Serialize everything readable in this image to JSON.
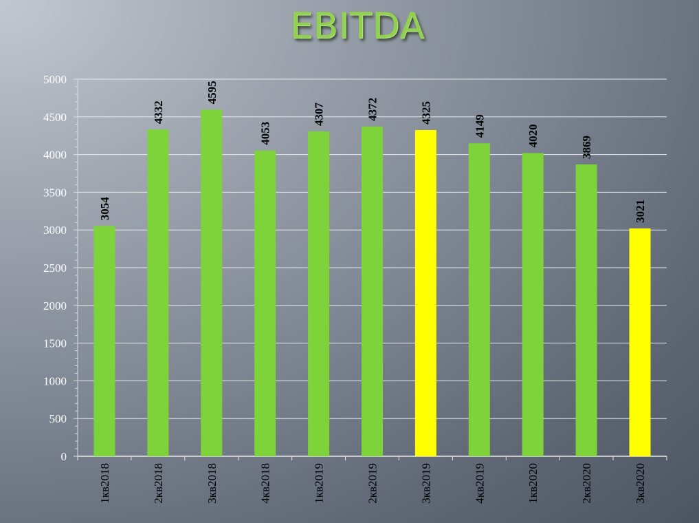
{
  "chart_data": {
    "type": "bar",
    "title": "EBITDA",
    "xlabel": "",
    "ylabel": "",
    "ylim": [
      0,
      5000
    ],
    "y_ticks": [
      0,
      500,
      1000,
      1500,
      2000,
      2500,
      3000,
      3500,
      4000,
      4500,
      5000
    ],
    "grid": true,
    "categories": [
      "1кв2018",
      "2кв2018",
      "3кв2018",
      "4кв2018",
      "1кв2019",
      "2кв2019",
      "3кв2019",
      "4кв2019",
      "1кв2020",
      "2кв2020",
      "3кв2020"
    ],
    "values": [
      3054,
      4332,
      4595,
      4053,
      4307,
      4372,
      4325,
      4149,
      4020,
      3869,
      3021
    ],
    "bar_colors": [
      "#7ed23a",
      "#7ed23a",
      "#7ed23a",
      "#7ed23a",
      "#7ed23a",
      "#7ed23a",
      "#ffff00",
      "#7ed23a",
      "#7ed23a",
      "#7ed23a",
      "#ffff00"
    ],
    "data_labels": [
      "3054",
      "4332",
      "4595",
      "4053",
      "4307",
      "4372",
      "4325",
      "4149",
      "4020",
      "3869",
      "3021"
    ]
  }
}
